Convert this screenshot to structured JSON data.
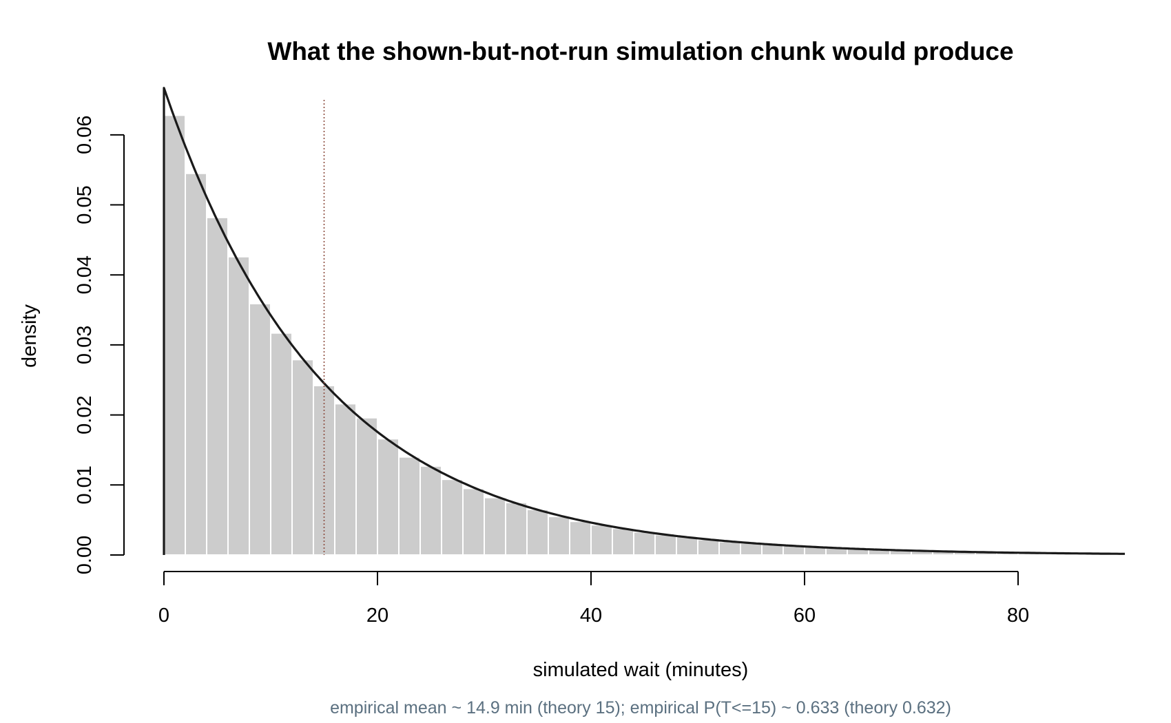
{
  "chart_data": {
    "type": "bar",
    "title": "What the shown-but-not-run simulation chunk would produce",
    "subtitle": "empirical mean ~ 14.9 min (theory 15); empirical P(T<=15) ~ 0.633 (theory 0.632)",
    "xlabel": "simulated wait (minutes)",
    "ylabel": "density",
    "xlim": [
      0,
      90
    ],
    "ylim": [
      0,
      0.065
    ],
    "x_ticks": [
      0,
      20,
      40,
      60,
      80
    ],
    "x_tick_labels": [
      "0",
      "20",
      "40",
      "60",
      "80"
    ],
    "y_ticks": [
      0,
      0.01,
      0.02,
      0.03,
      0.04,
      0.05,
      0.06
    ],
    "y_tick_labels": [
      "0.00",
      "0.01",
      "0.02",
      "0.03",
      "0.04",
      "0.05",
      "0.06"
    ],
    "grid": false,
    "bin_width": 2,
    "bin_starts": [
      0,
      2,
      4,
      6,
      8,
      10,
      12,
      14,
      16,
      18,
      20,
      22,
      24,
      26,
      28,
      30,
      32,
      34,
      36,
      38,
      40,
      42,
      44,
      46,
      48,
      50,
      52,
      54,
      56,
      58,
      60,
      62,
      64,
      66,
      68,
      70,
      72,
      74,
      76,
      78,
      80,
      82,
      84,
      86,
      88
    ],
    "values": [
      0.0628,
      0.0545,
      0.0482,
      0.0426,
      0.0359,
      0.0317,
      0.0279,
      0.0242,
      0.0216,
      0.0196,
      0.0166,
      0.014,
      0.0127,
      0.0108,
      0.0095,
      0.0082,
      0.0075,
      0.0065,
      0.0055,
      0.0048,
      0.0043,
      0.0038,
      0.0033,
      0.0029,
      0.0026,
      0.0022,
      0.0019,
      0.0017,
      0.0015,
      0.0013,
      0.0012,
      0.001,
      0.0009,
      0.0008,
      0.0007,
      0.0006,
      0.0005,
      0.0005,
      0.0004,
      0.0004,
      0.0003,
      0.0003,
      0.0002,
      0.0002,
      0.0002
    ],
    "density_curve": {
      "name": "",
      "type": "line",
      "rate": 0.0667,
      "x_range": [
        0,
        90
      ],
      "x": [
        0,
        5,
        10,
        15,
        20,
        25,
        30,
        35,
        40,
        45,
        50,
        55,
        60,
        65,
        70,
        75,
        80,
        85,
        90
      ],
      "values": [
        0.0667,
        0.0478,
        0.0342,
        0.0245,
        0.0176,
        0.0126,
        0.009,
        0.0065,
        0.0046,
        0.0033,
        0.0024,
        0.0017,
        0.0012,
        0.0009,
        0.0006,
        0.0005,
        0.0003,
        0.0002,
        0.0002
      ]
    },
    "reference_line": {
      "x": 15,
      "style": "dotted"
    },
    "colors": {
      "bars": "#cccccc",
      "bar_border": "#ffffff",
      "curve": "#1a1a1a",
      "reference_line": "#8b4a3c",
      "subtitle": "#5b7080",
      "axis": "#000000"
    }
  }
}
